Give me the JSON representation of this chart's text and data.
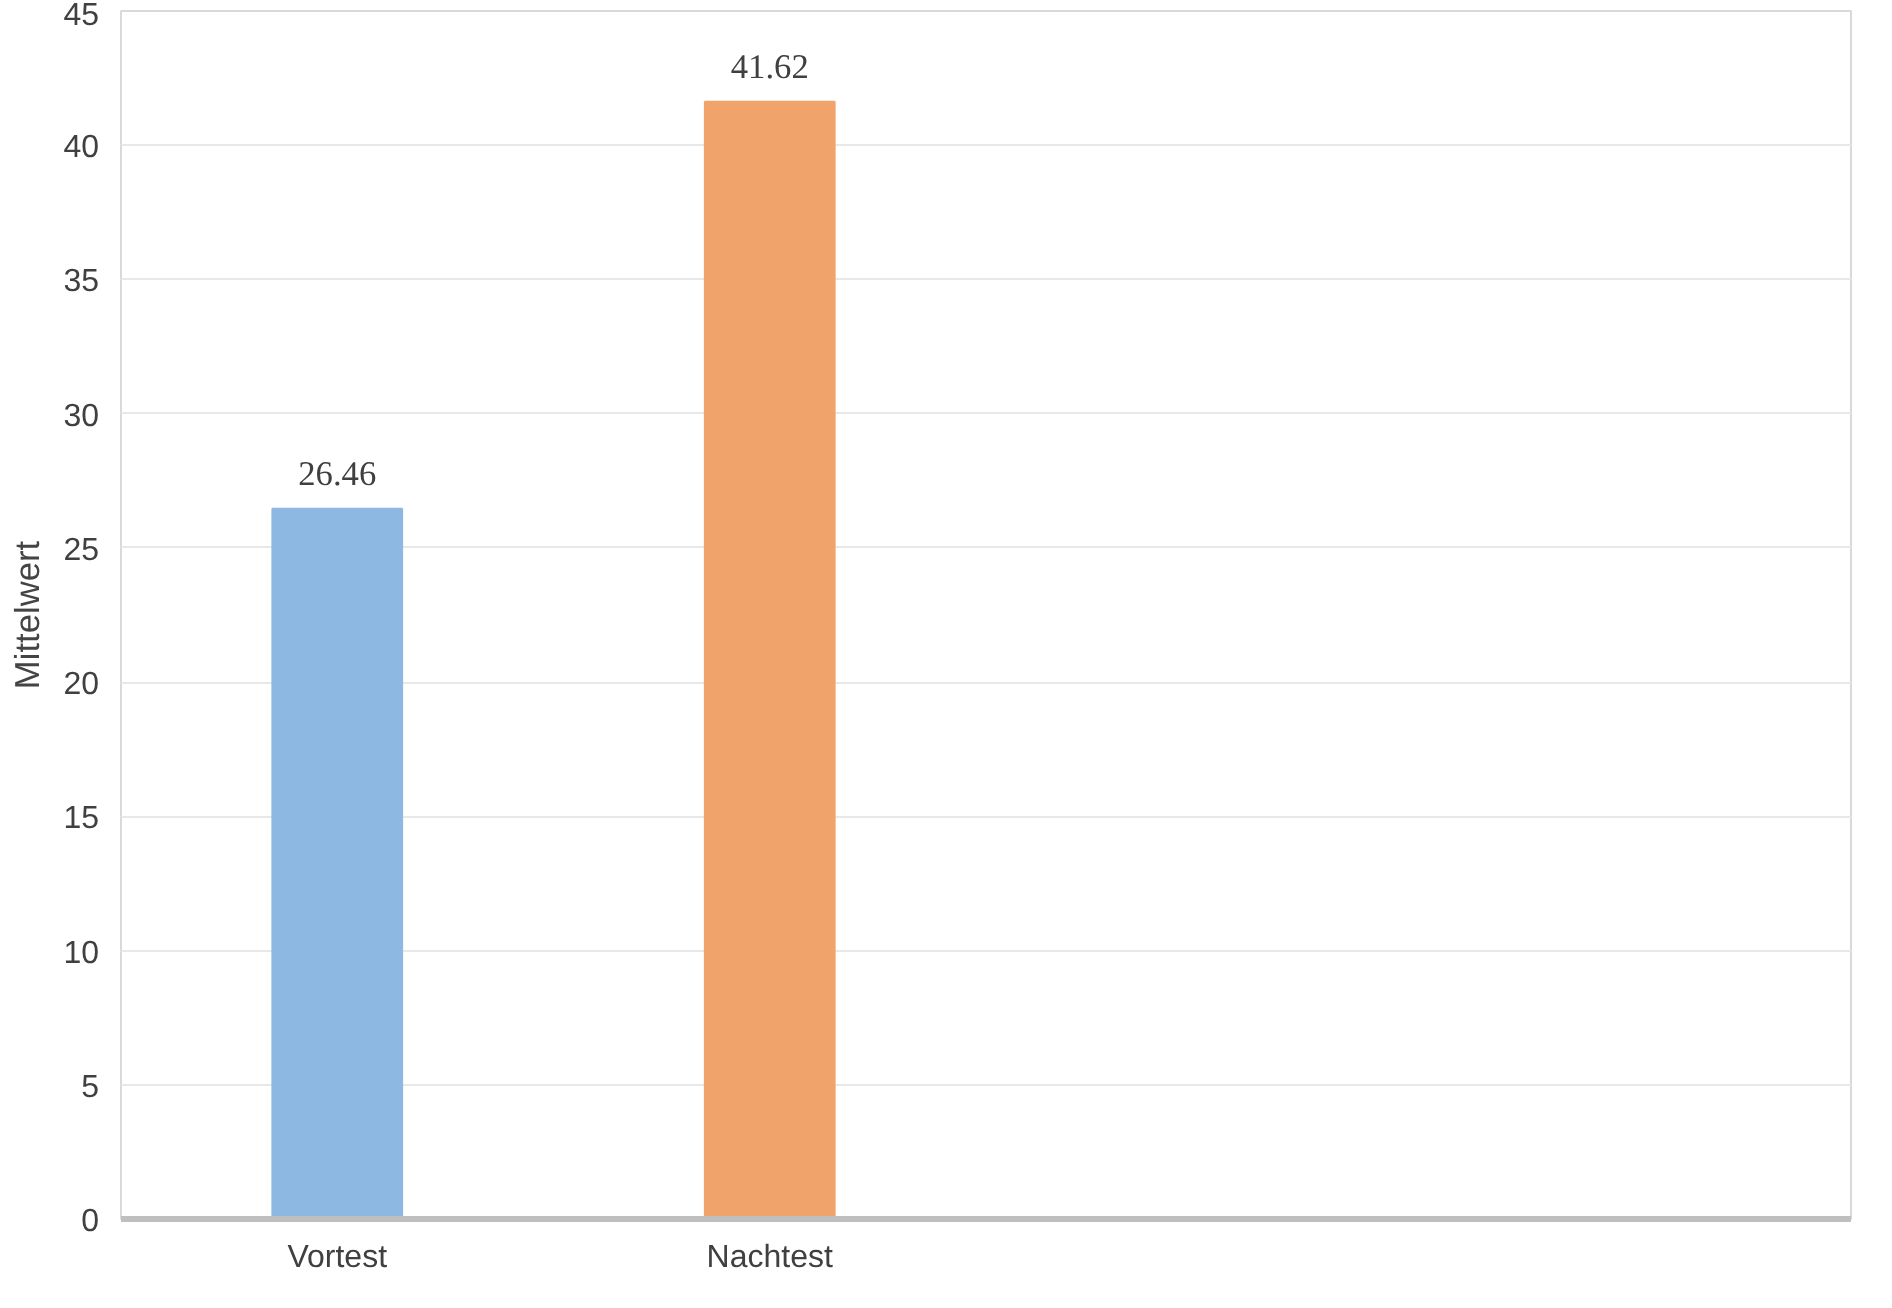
{
  "chart_data": {
    "type": "bar",
    "ylabel": "Mittelwert",
    "categories": [
      "Vortest",
      "Nachtest",
      null,
      null
    ],
    "values": [
      26.46,
      41.62,
      null,
      null
    ],
    "colors": [
      "#8db8e2",
      "#f0a46c",
      null,
      null
    ],
    "ylim": [
      0,
      45
    ],
    "yticks": [
      0,
      5,
      10,
      15,
      20,
      25,
      30,
      35,
      40,
      45
    ],
    "grid": "y",
    "data_labels": true
  }
}
